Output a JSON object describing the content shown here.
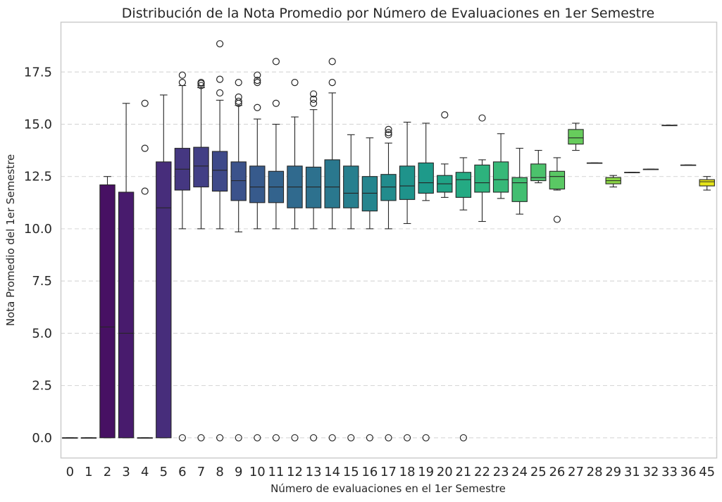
{
  "chart_data": {
    "type": "box",
    "title": "Distribución de la Nota Promedio por Número de Evaluaciones en 1er Semestre",
    "xlabel": "Número de evaluaciones en el 1er Semestre",
    "ylabel": "Nota Promedio del 1er Semestre",
    "ylim": [
      -0.95,
      19.9
    ],
    "yticks": [
      "0.0",
      "2.5",
      "5.0",
      "7.5",
      "10.0",
      "12.5",
      "15.0",
      "17.5"
    ],
    "grid": "horizontal dashed",
    "palette": "viridis",
    "categories": [
      "0",
      "1",
      "2",
      "3",
      "4",
      "5",
      "6",
      "7",
      "8",
      "9",
      "10",
      "11",
      "12",
      "13",
      "14",
      "15",
      "16",
      "17",
      "18",
      "19",
      "20",
      "21",
      "22",
      "23",
      "24",
      "25",
      "26",
      "27",
      "28",
      "29",
      "31",
      "32",
      "33",
      "36",
      "45"
    ],
    "boxes": [
      {
        "category": "0",
        "whislo": 0,
        "q1": 0,
        "med": 0,
        "q3": 0,
        "whishi": 0,
        "fliers": [],
        "color": "#440154"
      },
      {
        "category": "1",
        "whislo": 0,
        "q1": 0,
        "med": 0,
        "q3": 0,
        "whishi": 0,
        "fliers": [],
        "color": "#46085c"
      },
      {
        "category": "2",
        "whislo": 0,
        "q1": 0,
        "med": 5.3,
        "q3": 12.1,
        "whishi": 12.5,
        "fliers": [],
        "color": "#471063"
      },
      {
        "category": "3",
        "whislo": 0,
        "q1": 0,
        "med": 5.0,
        "q3": 11.75,
        "whishi": 16.0,
        "fliers": [],
        "color": "#481b6d"
      },
      {
        "category": "4",
        "whislo": 0,
        "q1": 0,
        "med": 0,
        "q3": 0,
        "whishi": 0,
        "fliers": [
          11.8,
          13.85,
          16.0
        ],
        "color": "#482475"
      },
      {
        "category": "5",
        "whislo": 0,
        "q1": 0,
        "med": 11.0,
        "q3": 13.2,
        "whishi": 16.4,
        "fliers": [],
        "color": "#472d7b"
      },
      {
        "category": "6",
        "whislo": 10.0,
        "q1": 11.85,
        "med": 12.85,
        "q3": 13.85,
        "whishi": 16.85,
        "fliers": [
          0,
          17.0,
          17.35
        ],
        "color": "#453781"
      },
      {
        "category": "7",
        "whislo": 10.0,
        "q1": 12.0,
        "med": 13.0,
        "q3": 13.9,
        "whishi": 16.75,
        "fliers": [
          0,
          16.85,
          16.95,
          17.0
        ],
        "color": "#423f85"
      },
      {
        "category": "8",
        "whislo": 10.0,
        "q1": 11.8,
        "med": 12.8,
        "q3": 13.7,
        "whishi": 16.15,
        "fliers": [
          0,
          16.5,
          17.15,
          18.85
        ],
        "color": "#3e4989"
      },
      {
        "category": "9",
        "whislo": 9.85,
        "q1": 11.35,
        "med": 12.3,
        "q3": 13.2,
        "whishi": 15.9,
        "fliers": [
          0,
          16.0,
          16.1,
          16.3,
          17.0
        ],
        "color": "#3b528b"
      },
      {
        "category": "10",
        "whislo": 10.0,
        "q1": 11.25,
        "med": 12.0,
        "q3": 13.0,
        "whishi": 15.25,
        "fliers": [
          0,
          15.8,
          17.0,
          17.1,
          17.35
        ],
        "color": "#375a8c"
      },
      {
        "category": "11",
        "whislo": 10.0,
        "q1": 11.25,
        "med": 12.0,
        "q3": 12.75,
        "whishi": 15.0,
        "fliers": [
          0,
          16.0,
          18.0
        ],
        "color": "#33638d"
      },
      {
        "category": "12",
        "whislo": 10.0,
        "q1": 11.0,
        "med": 12.0,
        "q3": 13.0,
        "whishi": 15.35,
        "fliers": [
          0,
          17.0
        ],
        "color": "#306a8e"
      },
      {
        "category": "13",
        "whislo": 10.0,
        "q1": 11.0,
        "med": 12.0,
        "q3": 12.95,
        "whishi": 15.7,
        "fliers": [
          0,
          16.0,
          16.2,
          16.45
        ],
        "color": "#2d718e"
      },
      {
        "category": "14",
        "whislo": 10.0,
        "q1": 11.0,
        "med": 12.0,
        "q3": 13.3,
        "whishi": 16.5,
        "fliers": [
          0,
          17.0,
          18.0
        ],
        "color": "#2a788e"
      },
      {
        "category": "15",
        "whislo": 10.0,
        "q1": 11.0,
        "med": 11.7,
        "q3": 13.0,
        "whishi": 14.5,
        "fliers": [
          0
        ],
        "color": "#277f8e"
      },
      {
        "category": "16",
        "whislo": 10.0,
        "q1": 10.85,
        "med": 11.7,
        "q3": 12.5,
        "whishi": 14.35,
        "fliers": [
          0
        ],
        "color": "#25858e"
      },
      {
        "category": "17",
        "whislo": 10.0,
        "q1": 11.35,
        "med": 12.0,
        "q3": 12.6,
        "whishi": 14.1,
        "fliers": [
          0,
          14.5,
          14.6,
          14.75
        ],
        "color": "#228c8d"
      },
      {
        "category": "18",
        "whislo": 10.25,
        "q1": 11.4,
        "med": 12.05,
        "q3": 13.0,
        "whishi": 15.1,
        "fliers": [
          0
        ],
        "color": "#1f938b"
      },
      {
        "category": "19",
        "whislo": 11.35,
        "q1": 11.7,
        "med": 12.2,
        "q3": 13.15,
        "whishi": 15.05,
        "fliers": [
          0
        ],
        "color": "#1e9a8a"
      },
      {
        "category": "20",
        "whislo": 11.5,
        "q1": 11.75,
        "med": 12.15,
        "q3": 12.55,
        "whishi": 13.1,
        "fliers": [
          15.45
        ],
        "color": "#20a386"
      },
      {
        "category": "21",
        "whislo": 10.9,
        "q1": 11.5,
        "med": 12.35,
        "q3": 12.7,
        "whishi": 13.4,
        "fliers": [
          0
        ],
        "color": "#24aa83"
      },
      {
        "category": "22",
        "whislo": 10.35,
        "q1": 11.75,
        "med": 12.2,
        "q3": 13.05,
        "whishi": 13.3,
        "fliers": [
          15.3
        ],
        "color": "#2db27d"
      },
      {
        "category": "23",
        "whislo": 11.45,
        "q1": 11.75,
        "med": 12.35,
        "q3": 13.2,
        "whishi": 14.55,
        "fliers": [],
        "color": "#37b878"
      },
      {
        "category": "24",
        "whislo": 10.7,
        "q1": 11.3,
        "med": 12.2,
        "q3": 12.45,
        "whishi": 13.85,
        "fliers": [],
        "color": "#42be71"
      },
      {
        "category": "25",
        "whislo": 12.2,
        "q1": 12.3,
        "med": 12.45,
        "q3": 13.1,
        "whishi": 13.75,
        "fliers": [],
        "color": "#4cc26c"
      },
      {
        "category": "26",
        "whislo": 11.85,
        "q1": 11.9,
        "med": 12.5,
        "q3": 12.75,
        "whishi": 13.4,
        "fliers": [
          10.45
        ],
        "color": "#5ac864"
      },
      {
        "category": "27",
        "whislo": 13.75,
        "q1": 14.05,
        "med": 14.35,
        "q3": 14.75,
        "whishi": 15.05,
        "fliers": [],
        "color": "#67cc5c"
      },
      {
        "category": "28",
        "whislo": 13.15,
        "q1": 13.15,
        "med": 13.15,
        "q3": 13.15,
        "whishi": 13.15,
        "fliers": [],
        "color": "#7ad151"
      },
      {
        "category": "29",
        "whislo": 12.0,
        "q1": 12.15,
        "med": 12.3,
        "q3": 12.45,
        "whishi": 12.55,
        "fliers": [],
        "color": "#8bd646"
      },
      {
        "category": "31",
        "whislo": 12.7,
        "q1": 12.7,
        "med": 12.7,
        "q3": 12.7,
        "whishi": 12.7,
        "fliers": [],
        "color": "#9dd93b"
      },
      {
        "category": "32",
        "whislo": 12.85,
        "q1": 12.85,
        "med": 12.85,
        "q3": 12.85,
        "whishi": 12.85,
        "fliers": [],
        "color": "#addc30"
      },
      {
        "category": "33",
        "whislo": 14.95,
        "q1": 14.95,
        "med": 14.95,
        "q3": 14.95,
        "whishi": 14.95,
        "fliers": [],
        "color": "#c2df23"
      },
      {
        "category": "36",
        "whislo": 13.05,
        "q1": 13.05,
        "med": 13.05,
        "q3": 13.05,
        "whishi": 13.05,
        "fliers": [],
        "color": "#d2e21b"
      },
      {
        "category": "45",
        "whislo": 11.85,
        "q1": 12.05,
        "med": 12.25,
        "q3": 12.35,
        "whishi": 12.5,
        "fliers": [],
        "color": "#e5e419"
      }
    ]
  }
}
